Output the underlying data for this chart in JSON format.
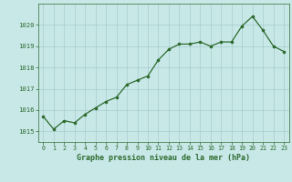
{
  "x": [
    0,
    1,
    2,
    3,
    4,
    5,
    6,
    7,
    8,
    9,
    10,
    11,
    12,
    13,
    14,
    15,
    16,
    17,
    18,
    19,
    20,
    21,
    22,
    23
  ],
  "y": [
    1015.7,
    1015.1,
    1015.5,
    1015.4,
    1015.8,
    1016.1,
    1016.4,
    1016.6,
    1017.2,
    1017.4,
    1017.6,
    1018.35,
    1018.85,
    1019.1,
    1019.1,
    1019.2,
    1019.0,
    1019.2,
    1019.2,
    1019.95,
    1020.4,
    1019.75,
    1019.0,
    1018.75
  ],
  "line_color": "#2d6a2d",
  "marker_color": "#2d6a2d",
  "bg_color": "#c8e8e8",
  "grid_color": "#a8cccc",
  "text_color": "#2d6a2d",
  "title": "Graphe pression niveau de la mer (hPa)",
  "ylabel_ticks": [
    1015,
    1016,
    1017,
    1018,
    1019,
    1020
  ],
  "xlim": [
    -0.5,
    23.5
  ],
  "ylim": [
    1014.5,
    1021.0
  ]
}
